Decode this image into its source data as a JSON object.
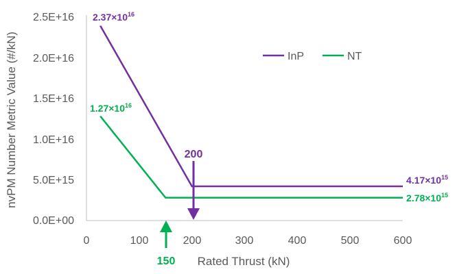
{
  "colors": {
    "InP": "#7030a0",
    "NT": "#00b050",
    "axis": "#595959"
  },
  "chart_data": {
    "type": "line",
    "xlabel": "Rated Thrust (kN)",
    "ylabel": "nvPM Number Metric Value (#/kN)",
    "xlim": [
      0,
      600
    ],
    "ylim": [
      0,
      2.5e+16
    ],
    "x_ticks": [
      "0",
      "100",
      "200",
      "300",
      "400",
      "500",
      "600"
    ],
    "y_ticks": [
      "0.0E+00",
      "5.0E+15",
      "1.0E+16",
      "1.5E+16",
      "2.0E+16",
      "2.5E+16"
    ],
    "grid": false,
    "legend_position": "top-right",
    "series": [
      {
        "name": "InP",
        "x": [
          26.3,
          200,
          600
        ],
        "y": [
          2.37e+16,
          4170000000000000.0,
          4170000000000000.0
        ]
      },
      {
        "name": "NT",
        "x": [
          26.3,
          150,
          600
        ],
        "y": [
          1.27e+16,
          2780000000000000.0,
          2780000000000000.0
        ]
      }
    ],
    "annotations": {
      "inp_start": {
        "base": "2.37×10",
        "exp": "16"
      },
      "nt_start": {
        "base": "1.27×10",
        "exp": "16"
      },
      "inp_end": {
        "base": "4.17×10",
        "exp": "15"
      },
      "nt_end": {
        "base": "2.78×10",
        "exp": "15"
      },
      "inp_break": "200",
      "nt_break": "150"
    }
  }
}
